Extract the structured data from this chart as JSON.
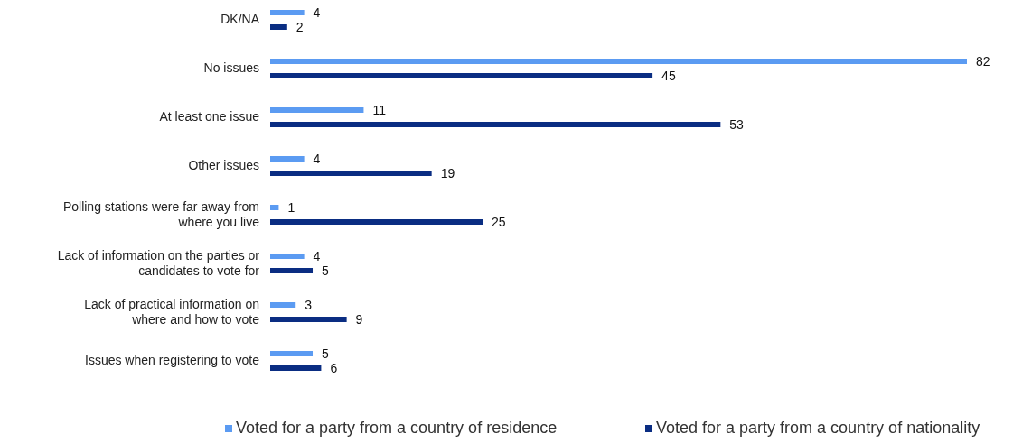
{
  "chart_data": {
    "type": "bar",
    "orientation": "horizontal",
    "categories": [
      "DK/NA",
      "No issues",
      "At least one issue",
      "Other issues",
      "Polling stations were far away from where you live",
      "Lack of information on the parties or candidates to vote for",
      "Lack of practical information on where and how to vote",
      "Issues when registering to vote"
    ],
    "series": [
      {
        "name": "Voted for a party from a country of residence",
        "color": "#5b9bf2",
        "values": [
          4,
          82,
          11,
          4,
          1,
          4,
          3,
          5
        ]
      },
      {
        "name": "Voted for a party from a country of nationality",
        "color": "#0a2d82",
        "values": [
          2,
          45,
          53,
          19,
          25,
          5,
          9,
          6
        ]
      }
    ],
    "tick_labels": "y",
    "data_labels": true,
    "legend": "bottom"
  }
}
